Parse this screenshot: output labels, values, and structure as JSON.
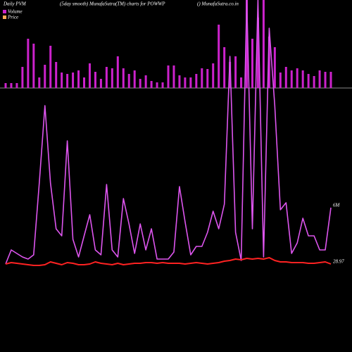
{
  "chart_data": [
    {
      "type": "bar",
      "title": "Daily PVM",
      "subtitle": "(5day smooth) MunafaSutra(TM) charts for POWWP",
      "source": "() MunafaSutra.co.in",
      "color": "#cc22cc",
      "ylim": [
        0,
        125
      ],
      "values": [
        7,
        7,
        7,
        30,
        70,
        63,
        15,
        33,
        60,
        37,
        22,
        20,
        22,
        25,
        15,
        35,
        23,
        13,
        30,
        28,
        45,
        28,
        20,
        25,
        13,
        18,
        10,
        8,
        8,
        32,
        32,
        18,
        15,
        15,
        20,
        28,
        27,
        35,
        90,
        58,
        37,
        45,
        15,
        125,
        70,
        100,
        125,
        73,
        58,
        22,
        30,
        25,
        28,
        25,
        20,
        17,
        25,
        23,
        23
      ]
    },
    {
      "type": "line",
      "ylim": [
        0,
        380
      ],
      "annotations": [
        "6M",
        "28.97"
      ],
      "series": [
        {
          "name": "Volume",
          "color": "#dd55ee",
          "values": [
            5,
            25,
            20,
            15,
            12,
            18,
            120,
            230,
            120,
            55,
            45,
            180,
            40,
            15,
            45,
            75,
            25,
            18,
            118,
            25,
            15,
            98,
            62,
            20,
            62,
            25,
            55,
            12,
            12,
            12,
            22,
            115,
            65,
            18,
            30,
            30,
            50,
            80,
            55,
            90,
            300,
            50,
            10,
            380,
            55,
            380,
            15,
            340,
            230,
            82,
            92,
            20,
            35,
            70,
            45,
            45,
            25,
            25,
            85
          ]
        },
        {
          "name": "Price",
          "color": "#ff2222",
          "values": [
            5,
            7,
            6,
            5,
            4,
            3,
            3,
            4,
            8,
            6,
            4,
            7,
            6,
            4,
            4,
            5,
            8,
            6,
            5,
            4,
            6,
            4,
            5,
            6,
            6,
            7,
            7,
            6,
            7,
            6,
            6,
            6,
            5,
            6,
            7,
            6,
            5,
            6,
            7,
            9,
            10,
            12,
            11,
            13,
            12,
            13,
            12,
            14,
            10,
            8,
            8,
            7,
            7,
            7,
            6,
            6,
            7,
            8,
            5
          ]
        }
      ]
    }
  ]
}
